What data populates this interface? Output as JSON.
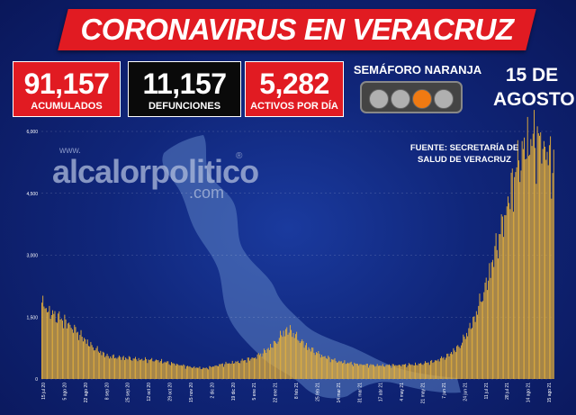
{
  "title": "CORONAVIRUS EN VERACRUZ",
  "stats": {
    "acumulados": {
      "value": "91,157",
      "label": "ACUMULADOS"
    },
    "defunciones": {
      "value": "11,157",
      "label": "DEFUNCIONES"
    },
    "activos": {
      "value": "5,282",
      "label": "ACTIVOS POR DÍA"
    }
  },
  "semaforo": {
    "label": "SEMÁFORO NARANJA",
    "active_color": "#f07a12",
    "off_color": "#b0b0b0"
  },
  "date": {
    "line1": "15 DE",
    "line2": "AGOSTO"
  },
  "source": {
    "line1": "FUENTE: SECRETARÍA DE",
    "line2": "SALUD DE VERACRUZ"
  },
  "watermark": {
    "www": "www.",
    "brand": "alcalorpolitico",
    "com": ".com",
    "reg": "®"
  },
  "colors": {
    "banner": "#e11b22",
    "bar": "#e8b23a",
    "background": "#10267a",
    "map": "#5b7fc2"
  },
  "chart_data": {
    "type": "bar",
    "ylim": [
      0,
      6000
    ],
    "y_ticks": [
      "6,000",
      "4,500",
      "3,000",
      "1,500",
      "0"
    ],
    "y_tick_values": [
      6000,
      4500,
      3000,
      1500,
      0
    ],
    "x_tick_labels": [
      "15 jul 20",
      "5 ago 20",
      "22 ago 20",
      "8 sep 20",
      "25 sep 20",
      "12 oct 20",
      "29 oct 20",
      "15 nov 20",
      "2 dic 20",
      "19 dic 20",
      "5 ene 21",
      "22 ene 21",
      "8 feb 21",
      "25 feb 21",
      "14 mar 21",
      "31 mar 21",
      "17 abr 21",
      "4 may 21",
      "21 may 21",
      "7 jun 21",
      "24 jun 21",
      "11 jul 21",
      "28 jul 21",
      "14 ago 21",
      "15 ago 21"
    ],
    "series": [
      {
        "name": "",
        "anchors": [
          [
            0,
            1850
          ],
          [
            8,
            1620
          ],
          [
            18,
            1480
          ],
          [
            30,
            1220
          ],
          [
            45,
            820
          ],
          [
            60,
            560
          ],
          [
            75,
            520
          ],
          [
            90,
            480
          ],
          [
            105,
            460
          ],
          [
            120,
            380
          ],
          [
            135,
            300
          ],
          [
            150,
            260
          ],
          [
            165,
            360
          ],
          [
            180,
            420
          ],
          [
            195,
            520
          ],
          [
            205,
            680
          ],
          [
            215,
            900
          ],
          [
            222,
            1150
          ],
          [
            228,
            1200
          ],
          [
            235,
            1000
          ],
          [
            245,
            760
          ],
          [
            258,
            560
          ],
          [
            272,
            430
          ],
          [
            290,
            360
          ],
          [
            310,
            330
          ],
          [
            328,
            340
          ],
          [
            345,
            360
          ],
          [
            360,
            430
          ],
          [
            372,
            560
          ],
          [
            384,
            820
          ],
          [
            396,
            1400
          ],
          [
            408,
            2300
          ],
          [
            418,
            3300
          ],
          [
            428,
            4300
          ],
          [
            436,
            5200
          ],
          [
            444,
            5700
          ],
          [
            452,
            5900
          ],
          [
            460,
            5750
          ],
          [
            465,
            5450
          ],
          [
            470,
            5282
          ]
        ],
        "days": 470
      }
    ]
  }
}
